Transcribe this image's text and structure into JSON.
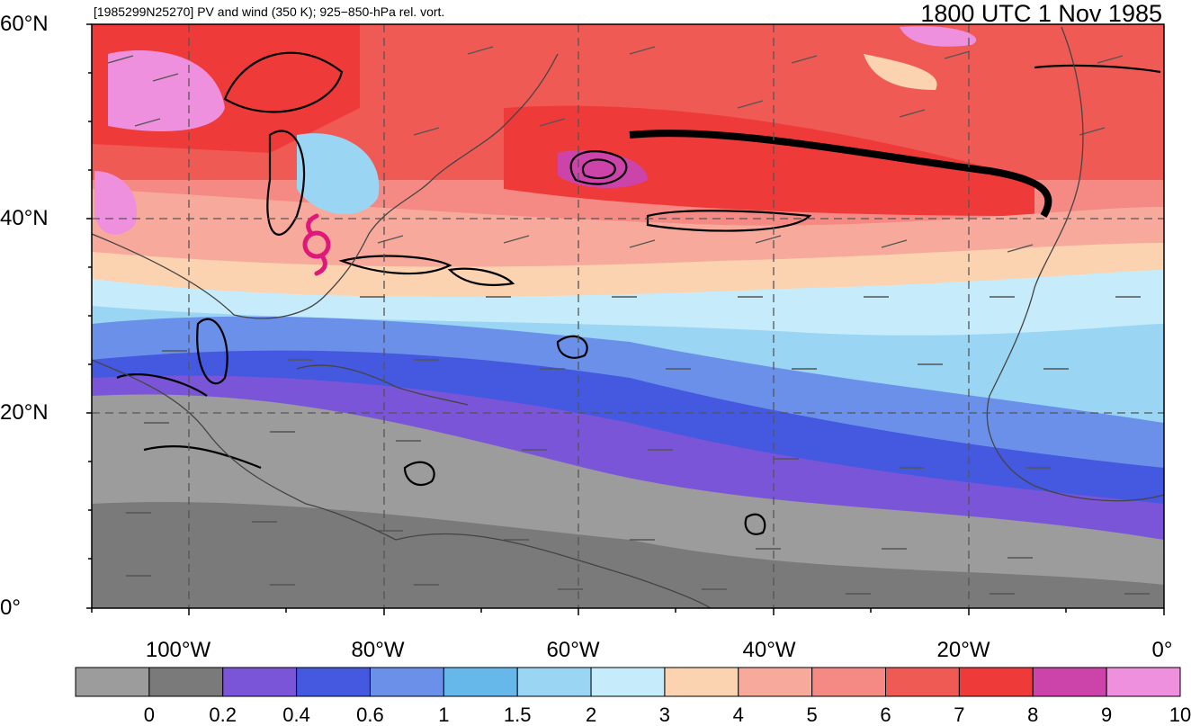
{
  "header": {
    "left": "[1985299N25270] PV and wind (350 K); 925−850-hPa rel. vort.",
    "right": "1800 UTC 1 Nov 1985"
  },
  "map": {
    "lat_labels": [
      "60°N",
      "40°N",
      "20°N",
      "0°"
    ],
    "lon_labels": [
      "100°W",
      "80°W",
      "60°W",
      "40°W",
      "20°W",
      "0°"
    ],
    "storm_marker": "hurricane-symbol",
    "storm_color": "#e0187a"
  },
  "colorbar": {
    "colors": [
      "#9c9c9c",
      "#7a7a7a",
      "#7b55d8",
      "#4458e0",
      "#6a90ea",
      "#66b8ea",
      "#9ad6f4",
      "#c6ecfb",
      "#fbd3b0",
      "#f7aa9c",
      "#f58a85",
      "#f05a55",
      "#ef3a3a",
      "#cc44aa",
      "#ee90dd"
    ],
    "labels": [
      "0",
      "0.2",
      "0.4",
      "0.6",
      "1",
      "1.5",
      "2",
      "3",
      "4",
      "5",
      "6",
      "7",
      "8",
      "9",
      "10"
    ]
  }
}
